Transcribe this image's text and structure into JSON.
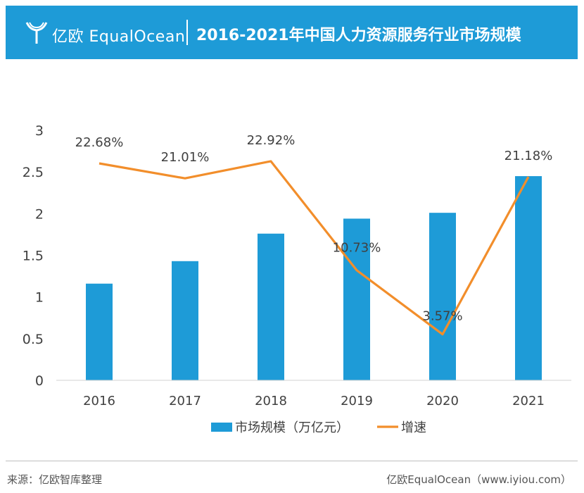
{
  "header": {
    "logo_text": "亿欧 EqualOcean",
    "title": "2016-2021年中国人力资源服务行业市场规模",
    "background_color": "#1e9bd7"
  },
  "chart_data": {
    "type": "bar",
    "categories": [
      "2016",
      "2017",
      "2018",
      "2019",
      "2020",
      "2021"
    ],
    "series": [
      {
        "name": "市场规模（万亿元）",
        "type": "bar",
        "axis": "left",
        "color": "#1e9bd7",
        "values": [
          1.16,
          1.43,
          1.76,
          1.94,
          2.01,
          2.45
        ]
      },
      {
        "name": "增速",
        "type": "line",
        "axis": "right",
        "color": "#f28e2b",
        "values": [
          22.68,
          21.01,
          22.92,
          10.73,
          3.57,
          21.18
        ],
        "labels": [
          "22.68%",
          "21.01%",
          "22.92%",
          "10.73%",
          "3.57%",
          "21.18%"
        ]
      }
    ],
    "y_ticks": [
      "0",
      "0.5",
      "1",
      "1.5",
      "2",
      "2.5",
      "3"
    ],
    "ylim": [
      0,
      3
    ],
    "legend_position": "bottom"
  },
  "footer": {
    "source": "来源：亿欧智库整理",
    "credit": "亿欧EqualOcean（www.iyiou.com）"
  }
}
